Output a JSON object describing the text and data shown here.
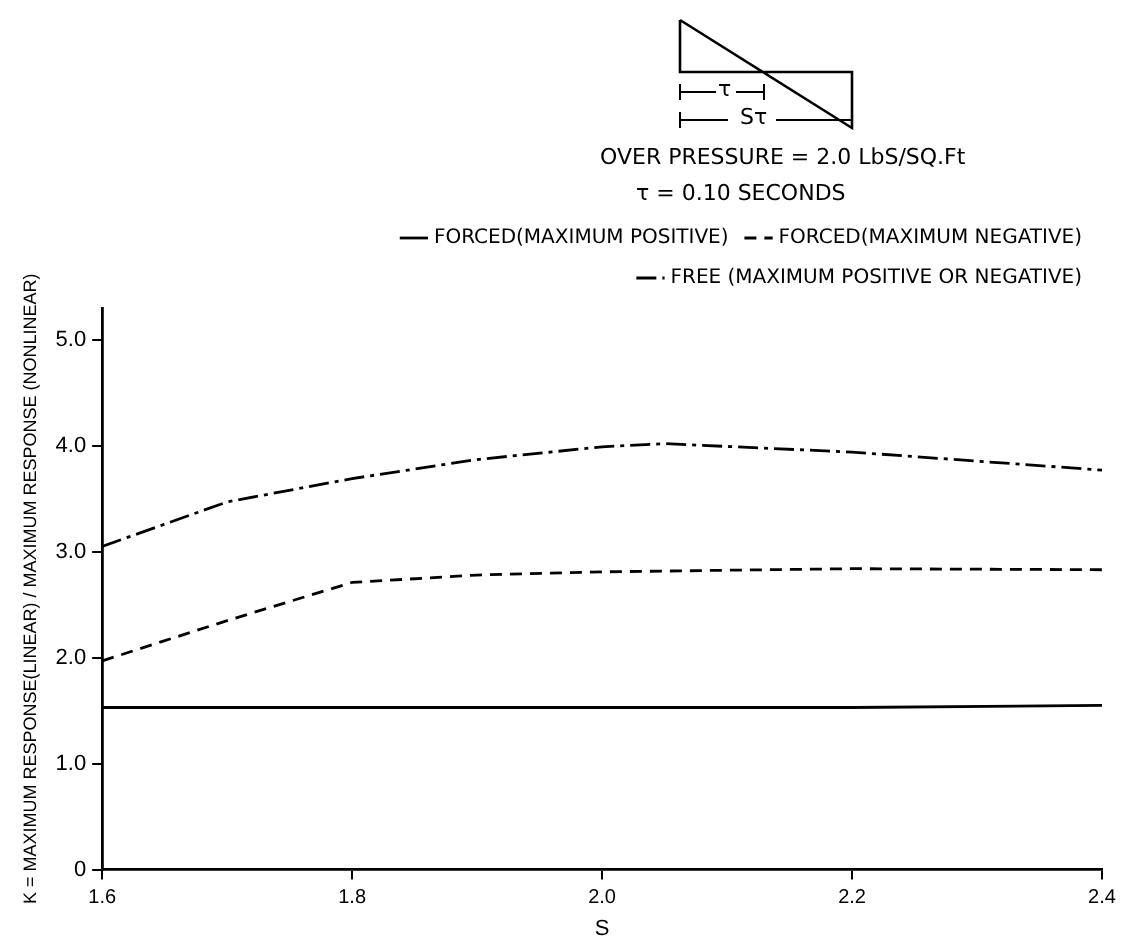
{
  "chart_data": {
    "type": "line",
    "xlabel": "S",
    "ylabel": "K = MAXIMUM RESPONSE(LINEAR) / MAXIMUM RESPONSE (NONLINEAR)",
    "annotations": [
      "τ",
      "Sτ",
      "OVER PRESSURE = 2.0 LbS/SQ.Ft",
      "τ = 0.10 SECONDS"
    ],
    "xlim": [
      1.6,
      2.4
    ],
    "xticks": [
      1.6,
      1.8,
      {
        "value": 2,
        "label": "2.0"
      },
      2.2,
      2.4
    ],
    "ylim": [
      0,
      5.3
    ],
    "yticks": [
      0,
      {
        "value": 1,
        "label": "1.0"
      },
      {
        "value": 2,
        "label": "2.0"
      },
      {
        "value": 3,
        "label": "3.0"
      },
      {
        "value": 4,
        "label": "4.0"
      },
      {
        "value": 5,
        "label": "5.0"
      }
    ],
    "grid": false,
    "legend": "top right",
    "marker": "none",
    "series": [
      {
        "name": "FORCED(MAXIMUM POSITIVE)",
        "color": "#000000",
        "line_style": "solid",
        "x": [
          1.6,
          1.8,
          2.0,
          2.2,
          2.4
        ],
        "values": [
          1.53,
          1.53,
          1.53,
          1.53,
          1.55
        ]
      },
      {
        "name": "FORCED(MAXIMUM NEGATIVE)",
        "color": "#000000",
        "line_style": "dashed",
        "x": [
          1.6,
          1.7,
          1.8,
          1.9,
          2.0,
          2.2,
          2.4
        ],
        "values": [
          1.97,
          2.35,
          2.71,
          2.78,
          2.81,
          2.84,
          2.83
        ]
      },
      {
        "name": "FREE (MAXIMUM POSITIVE OR NEGATIVE)",
        "color": "#000000",
        "line_style": "dashdot",
        "x": [
          1.6,
          1.7,
          1.8,
          1.9,
          2.0,
          2.05,
          2.2,
          2.4
        ],
        "values": [
          3.05,
          3.47,
          3.69,
          3.87,
          3.99,
          4.02,
          3.94,
          3.77
        ]
      }
    ]
  }
}
